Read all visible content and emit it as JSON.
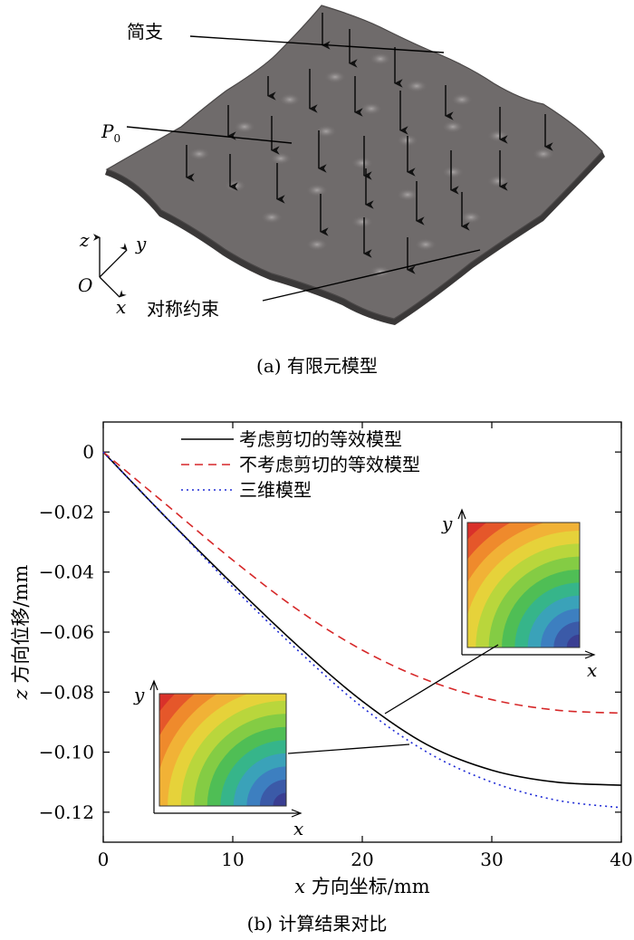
{
  "panel_a": {
    "caption": "(a) 有限元模型",
    "labels": {
      "simply_supported": "简支",
      "load": "P",
      "load_sub": "0",
      "symmetric": "对称约束"
    },
    "axes": {
      "z": "z",
      "y": "y",
      "x": "x",
      "origin": "O"
    },
    "colors": {
      "plate": "#6f6b6b",
      "edge": "#3a3838",
      "arrow": "#111111"
    }
  },
  "panel_b": {
    "caption": "(b) 计算结果对比"
  },
  "chart_data": {
    "type": "line",
    "xlabel_var": "x",
    "xlabel": "方向坐标/mm",
    "ylabel_var": "z",
    "ylabel": "方向位移/mm",
    "xlim": [
      0,
      40
    ],
    "ylim": [
      -0.13,
      0.01
    ],
    "xticks": [
      0,
      10,
      20,
      30,
      40
    ],
    "yticks": [
      0,
      -0.02,
      -0.04,
      -0.06,
      -0.08,
      -0.1,
      -0.12
    ],
    "ytick_labels": [
      "0",
      "−0.02",
      "−0.04",
      "−0.06",
      "−0.08",
      "−0.10",
      "−0.12"
    ],
    "legend_position": "top-center",
    "series": [
      {
        "name": "考虑剪切的等效模型",
        "color": "#000000",
        "style": "solid",
        "x": [
          0,
          5,
          10,
          15,
          20,
          25,
          30,
          35,
          40
        ],
        "y": [
          0,
          -0.0225,
          -0.044,
          -0.0645,
          -0.083,
          -0.0975,
          -0.106,
          -0.11,
          -0.111
        ]
      },
      {
        "name": "不考虑剪切的等效模型",
        "color": "#d62728",
        "style": "dashed",
        "x": [
          0,
          5,
          10,
          15,
          20,
          25,
          30,
          35,
          40
        ],
        "y": [
          0,
          -0.018,
          -0.036,
          -0.0525,
          -0.066,
          -0.076,
          -0.0825,
          -0.086,
          -0.087
        ]
      },
      {
        "name": "三维模型",
        "color": "#1f2bd6",
        "style": "dotted",
        "x": [
          0,
          5,
          10,
          15,
          20,
          25,
          30,
          35,
          40
        ],
        "y": [
          0,
          -0.0225,
          -0.045,
          -0.066,
          -0.085,
          -0.1,
          -0.11,
          -0.116,
          -0.1185
        ]
      }
    ],
    "insets": [
      {
        "name": "large-inset",
        "x_label": "x",
        "y_label": "y"
      },
      {
        "name": "small-inset",
        "x_label": "x",
        "y_label": "y"
      }
    ]
  }
}
